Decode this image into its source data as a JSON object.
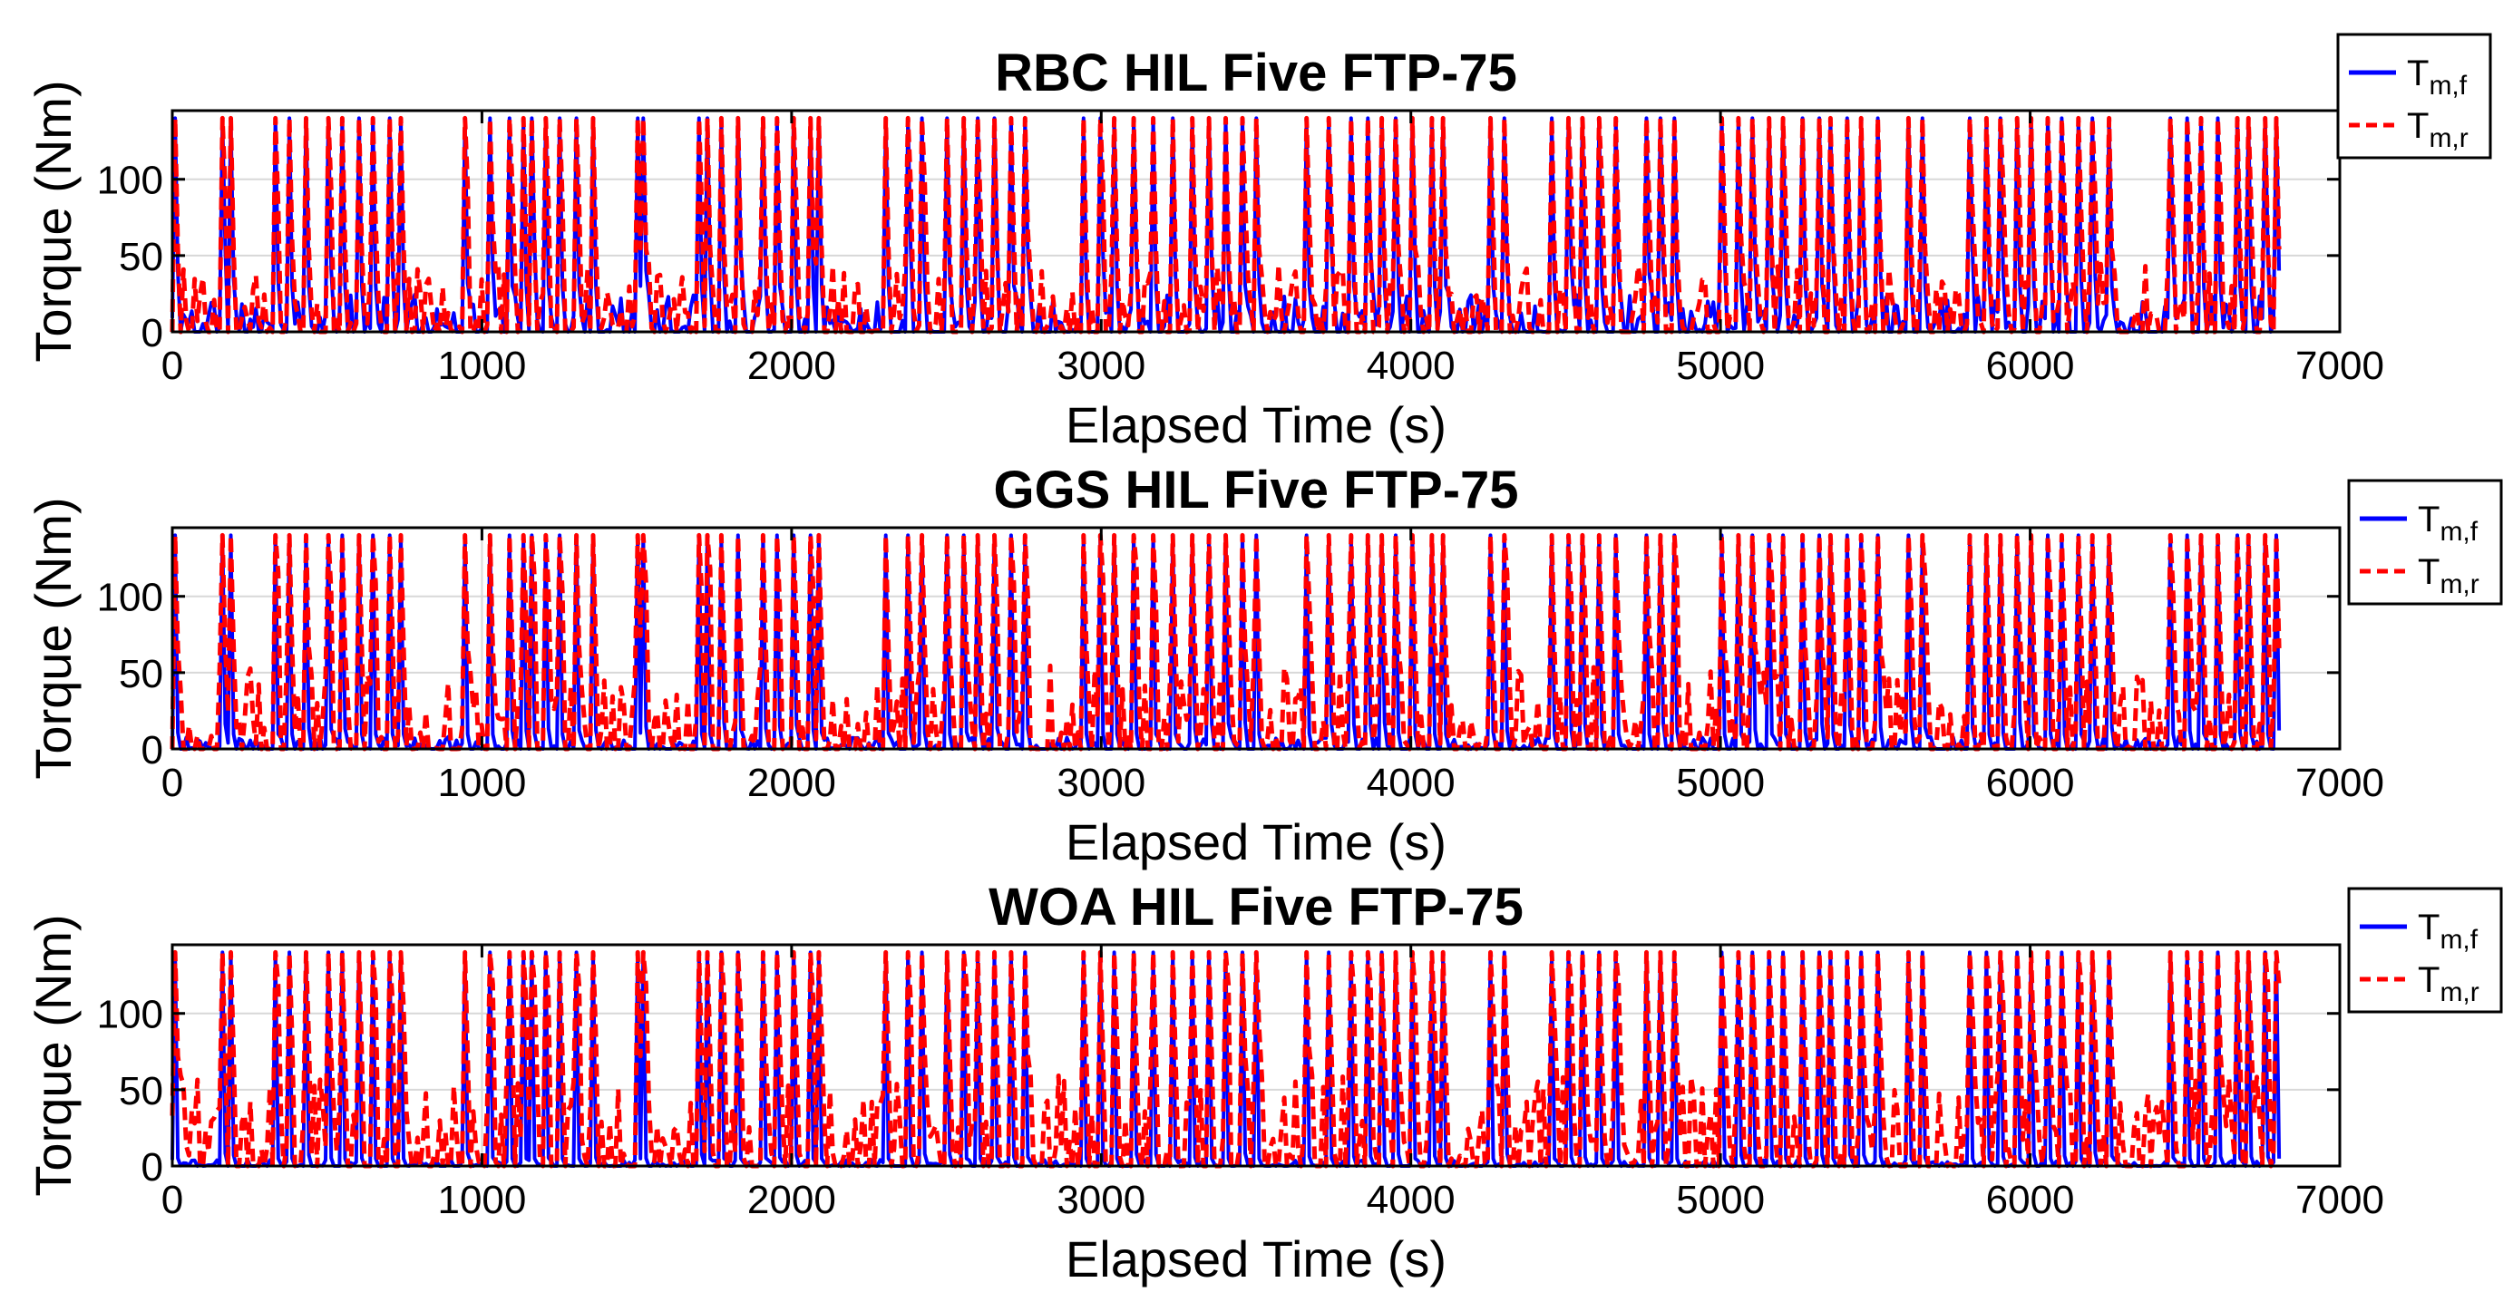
{
  "chart_data": [
    {
      "type": "line",
      "title": "RBC HIL Five FTP-75",
      "xlabel": "Elapsed Time (s)",
      "ylabel": "Torque (Nm)",
      "xlim": [
        0,
        7000
      ],
      "ylim": [
        0,
        145
      ],
      "xticks": [
        0,
        1000,
        2000,
        3000,
        4000,
        5000,
        6000,
        7000
      ],
      "yticks": [
        0,
        50,
        100
      ],
      "grid": true,
      "legend_position": "top-right outside",
      "seed": 11,
      "peak_times": [
        7,
        165,
        185,
        335,
        375,
        430,
        500,
        545,
        605,
        650,
        700,
        735,
        945,
        1025,
        1085,
        1135,
        1165,
        1205,
        1255,
        1305,
        1355,
        1505,
        1525,
        1700,
        1725,
        1775,
        1825,
        1905,
        1955,
        2005,
        2065,
        2085,
        2305,
        2375,
        2425,
        2505,
        2555,
        2605,
        2655,
        2705,
        2755,
        2945,
        2995,
        3045,
        3105,
        3165,
        3235,
        3295,
        3345,
        3405,
        3455,
        3505,
        3665,
        3735,
        3805,
        3865,
        3905,
        3955,
        4005,
        4065,
        4105,
        4255,
        4305,
        4455,
        4505,
        4555,
        4605,
        4665,
        4765,
        4805,
        4855,
        5005,
        5055,
        5105,
        5155,
        5205,
        5265,
        5315,
        5355,
        5405,
        5455,
        5505,
        5605,
        5655,
        5805,
        5855,
        5905,
        5955,
        6005,
        6055,
        6105,
        6155,
        6205,
        6255,
        6455,
        6505,
        6555,
        6605,
        6665,
        6705,
        6755,
        6795
      ],
      "series": [
        {
          "name": "Tm,f",
          "symbol": "T",
          "subscript": "m,f",
          "color": "#0000ff",
          "style": "solid",
          "peak_value": 140,
          "base_level": 25
        },
        {
          "name": "Tm,r",
          "symbol": "T",
          "subscript": "m,r",
          "color": "#ff0000",
          "style": "dashed",
          "peak_value": 140,
          "base_level": 45
        }
      ]
    },
    {
      "type": "line",
      "title": "GGS HIL Five FTP-75",
      "xlabel": "Elapsed Time (s)",
      "ylabel": "Torque (Nm)",
      "xlim": [
        0,
        7000
      ],
      "ylim": [
        0,
        145
      ],
      "xticks": [
        0,
        1000,
        2000,
        3000,
        4000,
        5000,
        6000,
        7000
      ],
      "yticks": [
        0,
        50,
        100
      ],
      "grid": true,
      "legend_position": "top-right outside",
      "seed": 23,
      "peak_times": [
        7,
        165,
        185,
        335,
        375,
        430,
        500,
        545,
        605,
        650,
        700,
        735,
        945,
        1025,
        1085,
        1135,
        1165,
        1205,
        1255,
        1305,
        1355,
        1505,
        1525,
        1700,
        1725,
        1775,
        1825,
        1905,
        1955,
        2005,
        2065,
        2085,
        2305,
        2375,
        2425,
        2505,
        2555,
        2605,
        2655,
        2705,
        2755,
        2945,
        2995,
        3045,
        3105,
        3165,
        3235,
        3295,
        3345,
        3405,
        3455,
        3505,
        3665,
        3735,
        3805,
        3865,
        3905,
        3955,
        4005,
        4065,
        4105,
        4255,
        4305,
        4455,
        4505,
        4555,
        4605,
        4665,
        4765,
        4805,
        4855,
        5005,
        5055,
        5105,
        5155,
        5205,
        5265,
        5315,
        5355,
        5405,
        5455,
        5505,
        5605,
        5655,
        5805,
        5855,
        5905,
        5955,
        6005,
        6055,
        6105,
        6155,
        6205,
        6255,
        6455,
        6505,
        6555,
        6605,
        6665,
        6705,
        6755,
        6795
      ],
      "series": [
        {
          "name": "Tm,f",
          "symbol": "T",
          "subscript": "m,f",
          "color": "#0000ff",
          "style": "solid",
          "peak_value": 140,
          "base_level": 8
        },
        {
          "name": "Tm,r",
          "symbol": "T",
          "subscript": "m,r",
          "color": "#ff0000",
          "style": "dashed",
          "peak_value": 140,
          "base_level": 55
        }
      ]
    },
    {
      "type": "line",
      "title": "WOA HIL Five FTP-75",
      "xlabel": "Elapsed Time (s)",
      "ylabel": "Torque (Nm)",
      "xlim": [
        0,
        7000
      ],
      "ylim": [
        0,
        145
      ],
      "xticks": [
        0,
        1000,
        2000,
        3000,
        4000,
        5000,
        6000,
        7000
      ],
      "yticks": [
        0,
        50,
        100
      ],
      "grid": true,
      "legend_position": "top-right outside",
      "seed": 37,
      "peak_times": [
        7,
        165,
        185,
        335,
        375,
        430,
        500,
        545,
        605,
        650,
        700,
        735,
        945,
        1025,
        1085,
        1135,
        1165,
        1205,
        1255,
        1305,
        1355,
        1505,
        1525,
        1700,
        1725,
        1775,
        1825,
        1905,
        1955,
        2005,
        2065,
        2085,
        2305,
        2375,
        2425,
        2505,
        2555,
        2605,
        2655,
        2705,
        2755,
        2945,
        2995,
        3045,
        3105,
        3165,
        3235,
        3295,
        3345,
        3405,
        3455,
        3505,
        3665,
        3735,
        3805,
        3865,
        3905,
        3955,
        4005,
        4065,
        4105,
        4255,
        4305,
        4455,
        4505,
        4555,
        4605,
        4665,
        4765,
        4805,
        4855,
        5005,
        5055,
        5105,
        5155,
        5205,
        5265,
        5315,
        5355,
        5405,
        5455,
        5505,
        5605,
        5655,
        5805,
        5855,
        5905,
        5955,
        6005,
        6055,
        6105,
        6155,
        6205,
        6255,
        6455,
        6505,
        6555,
        6605,
        6665,
        6705,
        6755,
        6795
      ],
      "series": [
        {
          "name": "Tm,f",
          "symbol": "T",
          "subscript": "m,f",
          "color": "#0000ff",
          "style": "solid",
          "peak_value": 140,
          "base_level": 4
        },
        {
          "name": "Tm,r",
          "symbol": "T",
          "subscript": "m,r",
          "color": "#ff0000",
          "style": "dashed",
          "peak_value": 140,
          "base_level": 60
        }
      ]
    }
  ]
}
